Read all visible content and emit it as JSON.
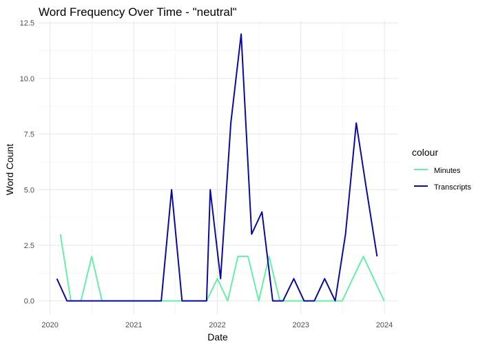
{
  "chart_data": {
    "type": "line",
    "title": "Word Frequency Over Time - \"neutral\"",
    "xlabel": "Date",
    "ylabel": "Word Count",
    "xlim": [
      "2019-11-12",
      "2024-03-01"
    ],
    "ylim": [
      -0.6,
      12.6
    ],
    "x_ticks": [
      "2020",
      "2021",
      "2022",
      "2023",
      "2024"
    ],
    "y_ticks": [
      "0.0",
      "2.5",
      "5.0",
      "7.5",
      "10.0",
      "12.5"
    ],
    "grid": true,
    "legend": {
      "title": "colour",
      "position": "right"
    },
    "series": [
      {
        "name": "Minutes",
        "color": "#66EEAA",
        "points": [
          {
            "x": "2020-02-15",
            "y": 3
          },
          {
            "x": "2020-04-01",
            "y": 0
          },
          {
            "x": "2020-05-15",
            "y": 0
          },
          {
            "x": "2020-07-01",
            "y": 2
          },
          {
            "x": "2020-08-15",
            "y": 0
          },
          {
            "x": "2021-11-15",
            "y": 0
          },
          {
            "x": "2022-01-01",
            "y": 1
          },
          {
            "x": "2022-02-15",
            "y": 0
          },
          {
            "x": "2022-04-01",
            "y": 2
          },
          {
            "x": "2022-05-15",
            "y": 2
          },
          {
            "x": "2022-07-01",
            "y": 0
          },
          {
            "x": "2022-08-15",
            "y": 2
          },
          {
            "x": "2022-10-01",
            "y": 0
          },
          {
            "x": "2023-07-01",
            "y": 0
          },
          {
            "x": "2023-08-15",
            "y": 1
          },
          {
            "x": "2023-10-01",
            "y": 2
          },
          {
            "x": "2023-11-15",
            "y": 1
          },
          {
            "x": "2023-12-31",
            "y": 0
          }
        ]
      },
      {
        "name": "Transcripts",
        "color": "#0A0A9E",
        "points": [
          {
            "x": "2020-01-31",
            "y": 1
          },
          {
            "x": "2020-03-15",
            "y": 0
          },
          {
            "x": "2020-04-30",
            "y": 0
          },
          {
            "x": "2020-06-15",
            "y": 0
          },
          {
            "x": "2020-07-31",
            "y": 0
          },
          {
            "x": "2020-09-15",
            "y": 0
          },
          {
            "x": "2021-05-01",
            "y": 0
          },
          {
            "x": "2021-06-15",
            "y": 5
          },
          {
            "x": "2021-07-31",
            "y": 0
          },
          {
            "x": "2021-11-15",
            "y": 0
          },
          {
            "x": "2021-12-01",
            "y": 5
          },
          {
            "x": "2022-01-15",
            "y": 1
          },
          {
            "x": "2022-03-01",
            "y": 8
          },
          {
            "x": "2022-04-15",
            "y": 12
          },
          {
            "x": "2022-05-31",
            "y": 3
          },
          {
            "x": "2022-07-15",
            "y": 4
          },
          {
            "x": "2022-08-31",
            "y": 0
          },
          {
            "x": "2022-10-15",
            "y": 0
          },
          {
            "x": "2022-12-01",
            "y": 1
          },
          {
            "x": "2023-01-15",
            "y": 0
          },
          {
            "x": "2023-03-01",
            "y": 0
          },
          {
            "x": "2023-04-15",
            "y": 1
          },
          {
            "x": "2023-05-31",
            "y": 0
          },
          {
            "x": "2023-07-15",
            "y": 3
          },
          {
            "x": "2023-08-31",
            "y": 8
          },
          {
            "x": "2023-10-15",
            "y": 5
          },
          {
            "x": "2023-11-30",
            "y": 2
          }
        ]
      }
    ]
  }
}
